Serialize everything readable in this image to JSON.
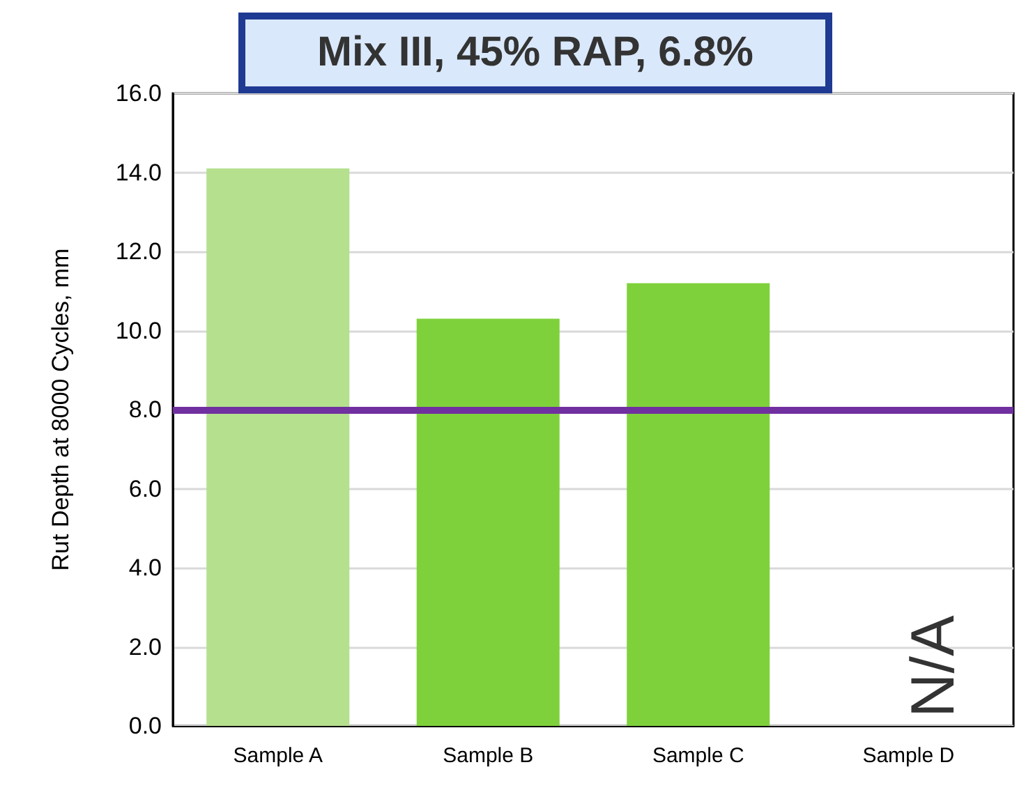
{
  "chart_data": {
    "type": "bar",
    "title": "Mix III, 45% RAP, 6.8%",
    "ylabel": "Rut Depth at 8000 Cycles, mm",
    "categories": [
      "Sample A",
      "Sample B",
      "Sample C",
      "Sample D"
    ],
    "values": [
      14.1,
      10.3,
      11.2,
      null
    ],
    "colors": [
      "#b5e08e",
      "#7fd13b",
      "#7fd13b",
      "#7fd13b"
    ],
    "ylim": [
      0,
      16
    ],
    "yticks": [
      {
        "value": 0,
        "label": "0.0"
      },
      {
        "value": 2,
        "label": "2.0"
      },
      {
        "value": 4,
        "label": "4.0"
      },
      {
        "value": 6,
        "label": "6.0"
      },
      {
        "value": 8,
        "label": "8.0"
      },
      {
        "value": 10,
        "label": "10.0"
      },
      {
        "value": 12,
        "label": "12.0"
      },
      {
        "value": 14,
        "label": "14.0"
      },
      {
        "value": 16,
        "label": "16.0"
      }
    ],
    "ref_lines": [
      {
        "axis": "y",
        "value": 8,
        "color": "#7030a0"
      }
    ],
    "annotations": [
      "N/A"
    ],
    "grid": "y"
  }
}
